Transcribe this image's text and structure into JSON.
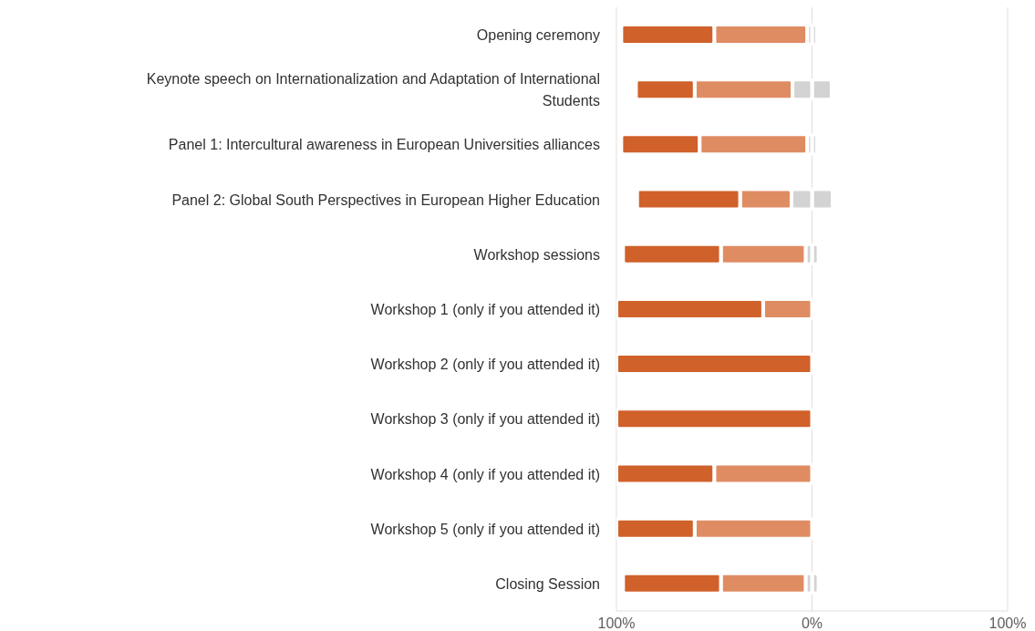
{
  "chart_data": {
    "type": "bar",
    "orientation": "horizontal",
    "stacked": true,
    "categories": [
      "Opening ceremony",
      "Keynote speech on Internationalization and Adaptation of International Students",
      "Panel 1: Intercultural awareness in European Universities alliances",
      "Panel 2: Global South Perspectives in European Higher Education",
      "Workshop sessions",
      "Workshop 1 (only if you attended it)",
      "Workshop 2 (only if you attended it)",
      "Workshop 3 (only if you attended it)",
      "Workshop 4 (only if you attended it)",
      "Workshop 5 (only if you attended it)",
      "Closing Session"
    ],
    "series": [
      {
        "color": "#d3d3d3",
        "values": [
          2.5,
          10,
          2.5,
          10.5,
          3.3,
          null,
          null,
          null,
          null,
          null,
          3.3
        ]
      },
      {
        "color": "#d3d3d3",
        "values": [
          -2.5,
          -10,
          -2.5,
          -10.5,
          -3.3,
          null,
          null,
          null,
          null,
          null,
          -3.3
        ]
      },
      {
        "color": "#e08c63",
        "values": [
          -47.5,
          -50,
          -55,
          -26.3,
          -43.3,
          -25,
          null,
          null,
          -50,
          -60,
          -43.3
        ]
      },
      {
        "color": "#d0612a",
        "values": [
          -47.5,
          -30,
          -40,
          -52.6,
          -50,
          -75,
          -100,
          -100,
          -50,
          -40,
          -50
        ]
      }
    ],
    "xlim": [
      -100,
      100
    ],
    "xticks": [
      {
        "value": -100,
        "label": "100%"
      },
      {
        "value": 0,
        "label": "0%"
      },
      {
        "value": 100,
        "label": "100%"
      }
    ],
    "grid": "x"
  }
}
